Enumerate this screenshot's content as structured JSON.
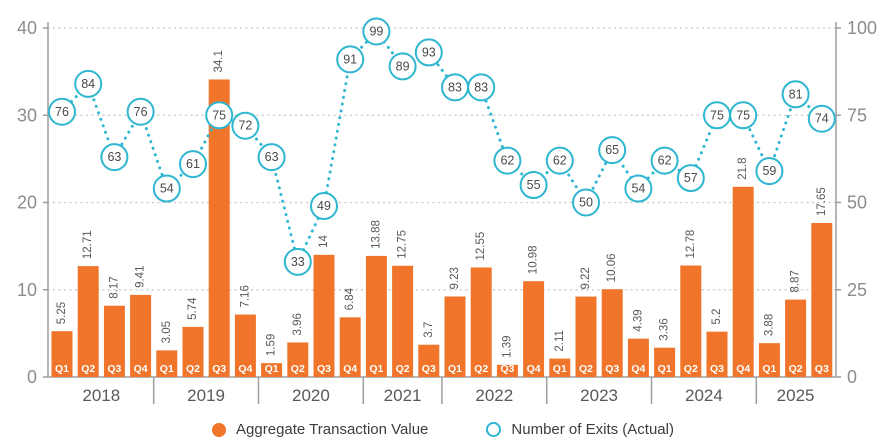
{
  "chart_data": {
    "type": "combo_bar_line",
    "title": "",
    "legend_position": "bottom",
    "categories": [
      {
        "year": "2018",
        "quarters": [
          "Q1",
          "Q2",
          "Q3",
          "Q4"
        ]
      },
      {
        "year": "2019",
        "quarters": [
          "Q1",
          "Q2",
          "Q3",
          "Q4"
        ]
      },
      {
        "year": "2020",
        "quarters": [
          "Q1",
          "Q2",
          "Q3",
          "Q4"
        ]
      },
      {
        "year": "2021",
        "quarters": [
          "Q1",
          "Q2",
          "Q3"
        ]
      },
      {
        "year": "2022",
        "quarters": [
          "Q1",
          "Q2",
          "Q3",
          "Q4"
        ]
      },
      {
        "year": "2023",
        "quarters": [
          "Q1",
          "Q2",
          "Q3",
          "Q4"
        ]
      },
      {
        "year": "2024",
        "quarters": [
          "Q1",
          "Q2",
          "Q3",
          "Q4"
        ]
      },
      {
        "year": "2025",
        "quarters": [
          "Q1",
          "Q2",
          "Q3"
        ]
      }
    ],
    "series": [
      {
        "name": "Aggregate Transaction Value",
        "type": "bar",
        "axis": "left",
        "color": "#F0752B",
        "values": [
          5.25,
          12.71,
          8.17,
          9.41,
          3.05,
          5.74,
          34.1,
          7.16,
          1.59,
          3.96,
          14,
          6.84,
          13.88,
          12.75,
          3.7,
          9.23,
          12.55,
          1.39,
          10.98,
          2.11,
          9.22,
          10.06,
          4.39,
          3.36,
          12.78,
          5.2,
          21.8,
          3.88,
          8.87,
          17.65
        ]
      },
      {
        "name": "Number of Exits (Actual)",
        "type": "line",
        "axis": "right",
        "color": "#2FB6D0",
        "line_style": "dotted",
        "marker": "labeled-circle",
        "values": [
          76,
          84,
          63,
          76,
          54,
          61,
          75,
          72,
          63,
          33,
          49,
          91,
          99,
          89,
          93,
          83,
          83,
          62,
          55,
          62,
          50,
          65,
          54,
          62,
          57,
          75,
          75,
          59,
          81,
          74
        ]
      }
    ],
    "left_axis": {
      "range": [
        0,
        40
      ],
      "ticks": [
        "0",
        "10",
        "20",
        "30",
        "40"
      ]
    },
    "right_axis": {
      "range": [
        0,
        100
      ],
      "ticks": [
        "0",
        "25",
        "50",
        "75",
        "100"
      ]
    },
    "grid": {
      "horizontal": "dotted",
      "color": "#CFCFCF"
    }
  }
}
